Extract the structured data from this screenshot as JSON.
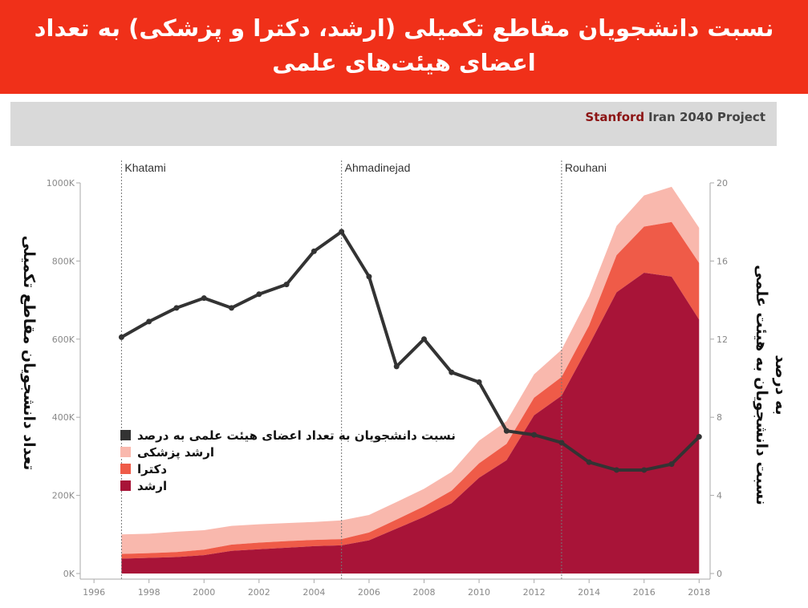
{
  "header": {
    "title": "نسبت دانشجویان مقاطع تکمیلی (ارشد، دکترا و پزشکی) به تعداد اعضای هیئت‌های علمی"
  },
  "credit": {
    "brand1": "Stanford",
    "brand2": "Iran 2040 Project"
  },
  "colors": {
    "masters": "#a81438",
    "phd": "#ef5b48",
    "medical": "#f9b8ad",
    "ratio": "#333333"
  },
  "chart_data": {
    "type": "area",
    "x": [
      1997,
      1998,
      1999,
      2000,
      2001,
      2002,
      2003,
      2004,
      2005,
      2006,
      2007,
      2008,
      2009,
      2010,
      2011,
      2012,
      2013,
      2014,
      2015,
      2016,
      2017,
      2018
    ],
    "xlim": [
      1995.5,
      2018.4
    ],
    "x_ticks": [
      "1996",
      "1998",
      "2000",
      "2002",
      "2004",
      "2006",
      "2008",
      "2010",
      "2012",
      "2014",
      "2016",
      "2018"
    ],
    "ylim_left": [
      0,
      1000000
    ],
    "y_ticks_left": [
      "0K",
      "200K",
      "400K",
      "600K",
      "800K",
      "1000K"
    ],
    "ylim_right": [
      0,
      20
    ],
    "y_ticks_right": [
      "0",
      "4",
      "8",
      "12",
      "16",
      "20"
    ],
    "ylabel_left": "تعداد دانشجویان مقاطع تکمیلی",
    "ylabel_right": "نسبت دانشجویان به هیئت علمی به درصد",
    "stack_series": [
      {
        "name": "ارشد",
        "values": [
          38000,
          40000,
          42000,
          47000,
          58000,
          62000,
          66000,
          70000,
          72000,
          85000,
          115000,
          145000,
          180000,
          245000,
          290000,
          405000,
          455000,
          585000,
          720000,
          770000,
          760000,
          650000
        ]
      },
      {
        "name": "دکترا",
        "values": [
          12000,
          12000,
          13000,
          14000,
          16000,
          17000,
          17000,
          16000,
          16000,
          20000,
          23000,
          27000,
          32000,
          37000,
          42000,
          45000,
          48000,
          50000,
          95000,
          118000,
          140000,
          145000
        ]
      },
      {
        "name": "ارشد پزشکی",
        "values": [
          50000,
          50000,
          52000,
          50000,
          48000,
          47000,
          46000,
          46000,
          48000,
          45000,
          45000,
          45000,
          48000,
          58000,
          58000,
          60000,
          70000,
          75000,
          75000,
          80000,
          90000,
          90000
        ]
      }
    ],
    "line_series": {
      "name": "نسبت دانشجویان به تعداد اعضای هیئت علمی به درصد",
      "values": [
        12.1,
        12.9,
        13.6,
        14.1,
        13.6,
        14.3,
        14.8,
        16.5,
        17.5,
        15.2,
        10.6,
        12.0,
        10.3,
        9.8,
        7.3,
        7.1,
        6.7,
        5.7,
        5.3,
        5.3,
        5.6,
        7.0
      ]
    },
    "events": [
      {
        "label": "Khatami",
        "x": 1997
      },
      {
        "label": "Ahmadinejad",
        "x": 2005
      },
      {
        "label": "Rouhani",
        "x": 2013
      }
    ],
    "legend": {
      "placement": "center-left",
      "items": [
        {
          "label": "نسبت دانشجویان به تعداد اعضای هیئت علمی به درصد",
          "color": "#333333"
        },
        {
          "label": "ارشد پزشکی",
          "color": "#f9b8ad"
        },
        {
          "label": "دکترا",
          "color": "#ef5b48"
        },
        {
          "label": "ارشد",
          "color": "#a81438"
        }
      ]
    }
  }
}
